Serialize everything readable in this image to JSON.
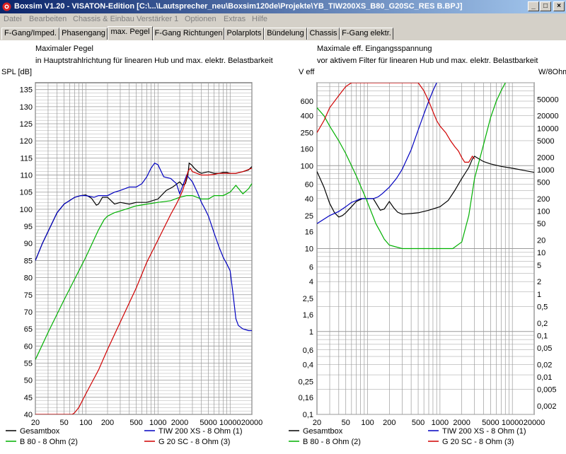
{
  "window": {
    "title": "Boxsim V1.20 - VISATON-Edition [C:\\...\\Lautsprecher_neu\\Boxsim120de\\Projekte\\YB_TIW200XS_B80_G20SC_RES B.BPJ]",
    "buttons": [
      "_",
      "□",
      "×"
    ]
  },
  "menu": [
    "Datei",
    "Bearbeiten",
    "Chassis & Einbau",
    "Verstärker 1",
    "Optionen",
    "Extras",
    "Hilfe"
  ],
  "tabs": [
    {
      "label": "F-Gang/Imped.",
      "active": false
    },
    {
      "label": "Phasengang",
      "active": false
    },
    {
      "label": "max. Pegel",
      "active": true
    },
    {
      "label": "F-Gang Richtungen",
      "active": false
    },
    {
      "label": "Polarplots",
      "active": false
    },
    {
      "label": "Bündelung",
      "active": false
    },
    {
      "label": "Chassis",
      "active": false
    },
    {
      "label": "F-Gang elektr.",
      "active": false
    }
  ],
  "colors": {
    "Gesamtbox": "#000000",
    "B 80 - 8 Ohm (2)": "#00b000",
    "TIW 200 XS - 8 Ohm (1)": "#0000c0",
    "G 20 SC - 8 Ohm (3)": "#d00000",
    "grid": "#9a9a9a"
  },
  "chart_data": [
    {
      "type": "line",
      "title": "Maximaler Pegel",
      "subtitle": "in Hauptstrahlrichtung für linearen Hub und max. elektr. Belastbarkeit",
      "ylabel": "SPL [dB]",
      "xscale": "log",
      "xlim": [
        20,
        20000
      ],
      "ylim": [
        40,
        137
      ],
      "xticks": [
        20,
        50,
        100,
        200,
        500,
        1000,
        2000,
        5000,
        10000,
        20000
      ],
      "xtick_labels": [
        "20",
        "50",
        "100",
        "200",
        "500",
        "1000",
        "2000",
        "5000",
        "10000",
        "20000"
      ],
      "yticks": [
        40,
        45,
        50,
        55,
        60,
        65,
        70,
        75,
        80,
        85,
        90,
        95,
        100,
        105,
        110,
        115,
        120,
        125,
        130,
        135
      ],
      "legend": [
        "Gesamtbox",
        "TIW 200 XS - 8 Ohm (1)",
        "B 80 - 8 Ohm (2)",
        "G 20 SC - 8 Ohm (3)"
      ],
      "series": [
        {
          "name": "Gesamtbox",
          "x": [
            20,
            25,
            30,
            40,
            50,
            70,
            85,
            100,
            120,
            140,
            150,
            170,
            200,
            250,
            300,
            400,
            500,
            700,
            1000,
            1300,
            1600,
            2000,
            2200,
            2400,
            2600,
            2700,
            2900,
            3200,
            3600,
            4000,
            5000,
            6000,
            7000,
            8000,
            9000,
            10000,
            12000,
            15000,
            18000,
            20000
          ],
          "y": [
            85,
            90,
            93.5,
            99,
            101.5,
            103.5,
            104,
            104.2,
            103.2,
            101.2,
            101.5,
            103.5,
            103.5,
            101.5,
            102,
            101.5,
            102,
            102,
            103,
            105.5,
            106.5,
            108,
            107,
            107.5,
            110,
            113.5,
            113,
            112,
            111,
            110.5,
            111,
            110.5,
            110.5,
            110.8,
            110.8,
            110.5,
            110.5,
            111,
            111.5,
            112.5
          ]
        },
        {
          "name": "TIW 200 XS - 8 Ohm (1)",
          "x": [
            20,
            25,
            30,
            40,
            50,
            70,
            85,
            100,
            130,
            150,
            200,
            250,
            300,
            400,
            500,
            600,
            700,
            800,
            900,
            1000,
            1200,
            1500,
            1800,
            2000,
            2500,
            3000,
            3500,
            4000,
            4500,
            5000,
            6000,
            7000,
            8000,
            9000,
            10000,
            11000,
            12000,
            13000,
            15000,
            18000,
            20000
          ],
          "y": [
            85,
            90,
            93.5,
            99,
            101.5,
            103.5,
            104,
            104,
            103.5,
            104,
            104,
            105,
            105.5,
            106.5,
            106.5,
            107.5,
            109.5,
            112,
            113.5,
            113,
            109.5,
            109,
            107.5,
            104.5,
            110,
            108,
            105,
            102,
            100,
            98,
            93,
            89,
            86,
            84,
            82,
            75,
            68,
            66,
            65,
            64.5,
            64.5
          ]
        },
        {
          "name": "B 80 - 8 Ohm (2)",
          "x": [
            20,
            30,
            50,
            100,
            150,
            180,
            200,
            250,
            300,
            500,
            700,
            1000,
            1500,
            2000,
            2500,
            3000,
            4000,
            5000,
            6000,
            7000,
            8000,
            10000,
            12000,
            15000,
            18000,
            20000
          ],
          "y": [
            56,
            64,
            73.5,
            86,
            94,
            97,
            98,
            99,
            99.5,
            101,
            101.5,
            102,
            102.5,
            103.5,
            104,
            104,
            103,
            103,
            104,
            104,
            104,
            105,
            107,
            104.5,
            106,
            107.5
          ]
        },
        {
          "name": "G 20 SC - 8 Ohm (3)",
          "x": [
            20,
            30,
            50,
            65,
            70,
            80,
            100,
            150,
            200,
            300,
            500,
            700,
            1000,
            1500,
            1800,
            2000,
            2200,
            2400,
            2600,
            2800,
            3000,
            4000,
            5000,
            6000,
            7000,
            8000,
            10000,
            12000,
            15000,
            20000
          ],
          "y": [
            40,
            40,
            40,
            40,
            40.5,
            42,
            46,
            53,
            59,
            67,
            77,
            84.5,
            91,
            98.5,
            101.5,
            103.5,
            105.5,
            108,
            111,
            112,
            111,
            110,
            110,
            110.2,
            110.5,
            110.5,
            110.5,
            110.5,
            111,
            112
          ]
        }
      ]
    },
    {
      "type": "line",
      "title": "Maximale eff. Eingangsspannung",
      "subtitle": "vor aktivem Filter für linearen Hub und max. elektr. Belastbarkeit",
      "ylabel": "V eff",
      "ylabel_right": "W/8Ohm",
      "xscale": "log",
      "yscale": "log",
      "xlim": [
        20,
        20000
      ],
      "ylim": [
        0.1,
        1000
      ],
      "xticks": [
        20,
        50,
        100,
        200,
        500,
        1000,
        2000,
        5000,
        10000,
        20000
      ],
      "xtick_labels": [
        "20",
        "50",
        "100",
        "200",
        "500",
        "1000",
        "2000",
        "5000",
        "10000",
        "20000"
      ],
      "yticks": [
        0.1,
        0.16,
        0.25,
        0.4,
        0.6,
        1,
        1.6,
        2.5,
        4,
        6,
        10,
        16,
        25,
        40,
        60,
        100,
        160,
        250,
        400,
        600
      ],
      "ytick_labels": [
        "0,1",
        "0,16",
        "0,25",
        "0,4",
        "0,6",
        "1",
        "1,6",
        "2,5",
        "4",
        "6",
        "10",
        "16",
        "25",
        "40",
        "60",
        "100",
        "160",
        "250",
        "400",
        "600"
      ],
      "yticks_right": [
        0.002,
        0.005,
        0.01,
        0.02,
        0.05,
        0.1,
        0.2,
        0.5,
        1,
        2,
        5,
        10,
        20,
        50,
        100,
        200,
        500,
        1000,
        2000,
        5000,
        10000,
        20000,
        50000
      ],
      "ytick_labels_right": [
        "0,002",
        "0,005",
        "0,01",
        "0,02",
        "0,05",
        "0,1",
        "0,2",
        "0,5",
        "1",
        "2",
        "5",
        "10",
        "20",
        "50",
        "100",
        "200",
        "500",
        "1000",
        "2000",
        "5000",
        "10000",
        "20000",
        "50000"
      ],
      "legend": [
        "Gesamtbox",
        "TIW 200 XS - 8 Ohm (1)",
        "B 80 - 8 Ohm (2)",
        "G 20 SC - 8 Ohm (3)"
      ],
      "series": [
        {
          "name": "Gesamtbox",
          "x": [
            20,
            25,
            30,
            35,
            40,
            45,
            50,
            60,
            70,
            85,
            100,
            120,
            140,
            150,
            170,
            200,
            230,
            260,
            300,
            400,
            500,
            700,
            1000,
            1300,
            1600,
            2000,
            2500,
            2800,
            3000,
            3500,
            4000,
            5000,
            7000,
            10000,
            15000,
            20000
          ],
          "y": [
            85,
            55,
            35,
            27,
            24,
            25,
            27,
            32,
            37,
            40,
            40,
            40,
            32,
            29,
            30,
            37,
            31,
            27.5,
            26,
            26.5,
            27,
            29,
            32,
            38,
            50,
            70,
            95,
            120,
            130,
            120,
            112,
            105,
            98,
            93,
            87,
            83
          ]
        },
        {
          "name": "TIW 200 XS - 8 Ohm (1)",
          "x": [
            20,
            30,
            40,
            50,
            60,
            70,
            80,
            100,
            120,
            140,
            160,
            200,
            250,
            300,
            400,
            500,
            600,
            700,
            800,
            900,
            1000
          ],
          "y": [
            20,
            25,
            28,
            32,
            36,
            38,
            40,
            40,
            40,
            42,
            46,
            55,
            70,
            90,
            155,
            270,
            420,
            600,
            800,
            1000,
            1200
          ]
        },
        {
          "name": "B 80 - 8 Ohm (2)",
          "x": [
            20,
            25,
            30,
            40,
            50,
            60,
            70,
            80,
            90,
            100,
            110,
            120,
            130,
            150,
            170,
            200,
            300,
            500,
            700,
            1000,
            1500,
            2000,
            2500,
            3000,
            4000,
            5000,
            6000,
            7000,
            8000,
            10000
          ],
          "y": [
            500,
            400,
            300,
            200,
            140,
            100,
            75,
            57,
            45,
            36,
            29,
            24,
            20,
            16,
            13,
            11,
            10,
            10,
            10,
            10,
            10,
            12,
            25,
            70,
            180,
            380,
            600,
            800,
            1000,
            1200
          ]
        },
        {
          "name": "G 20 SC - 8 Ohm (3)",
          "x": [
            20,
            25,
            30,
            40,
            50,
            60,
            65,
            70,
            80,
            100,
            200,
            400,
            500,
            600,
            700,
            800,
            900,
            1000,
            1200,
            1400,
            1600,
            1800,
            2000,
            2200,
            2500,
            2800,
            3000
          ],
          "y": [
            250,
            350,
            500,
            700,
            900,
            1000,
            1000,
            1000,
            1000,
            1000,
            1000,
            1000,
            1000,
            800,
            600,
            450,
            350,
            300,
            250,
            200,
            170,
            150,
            125,
            110,
            110,
            130,
            120
          ]
        }
      ]
    }
  ]
}
